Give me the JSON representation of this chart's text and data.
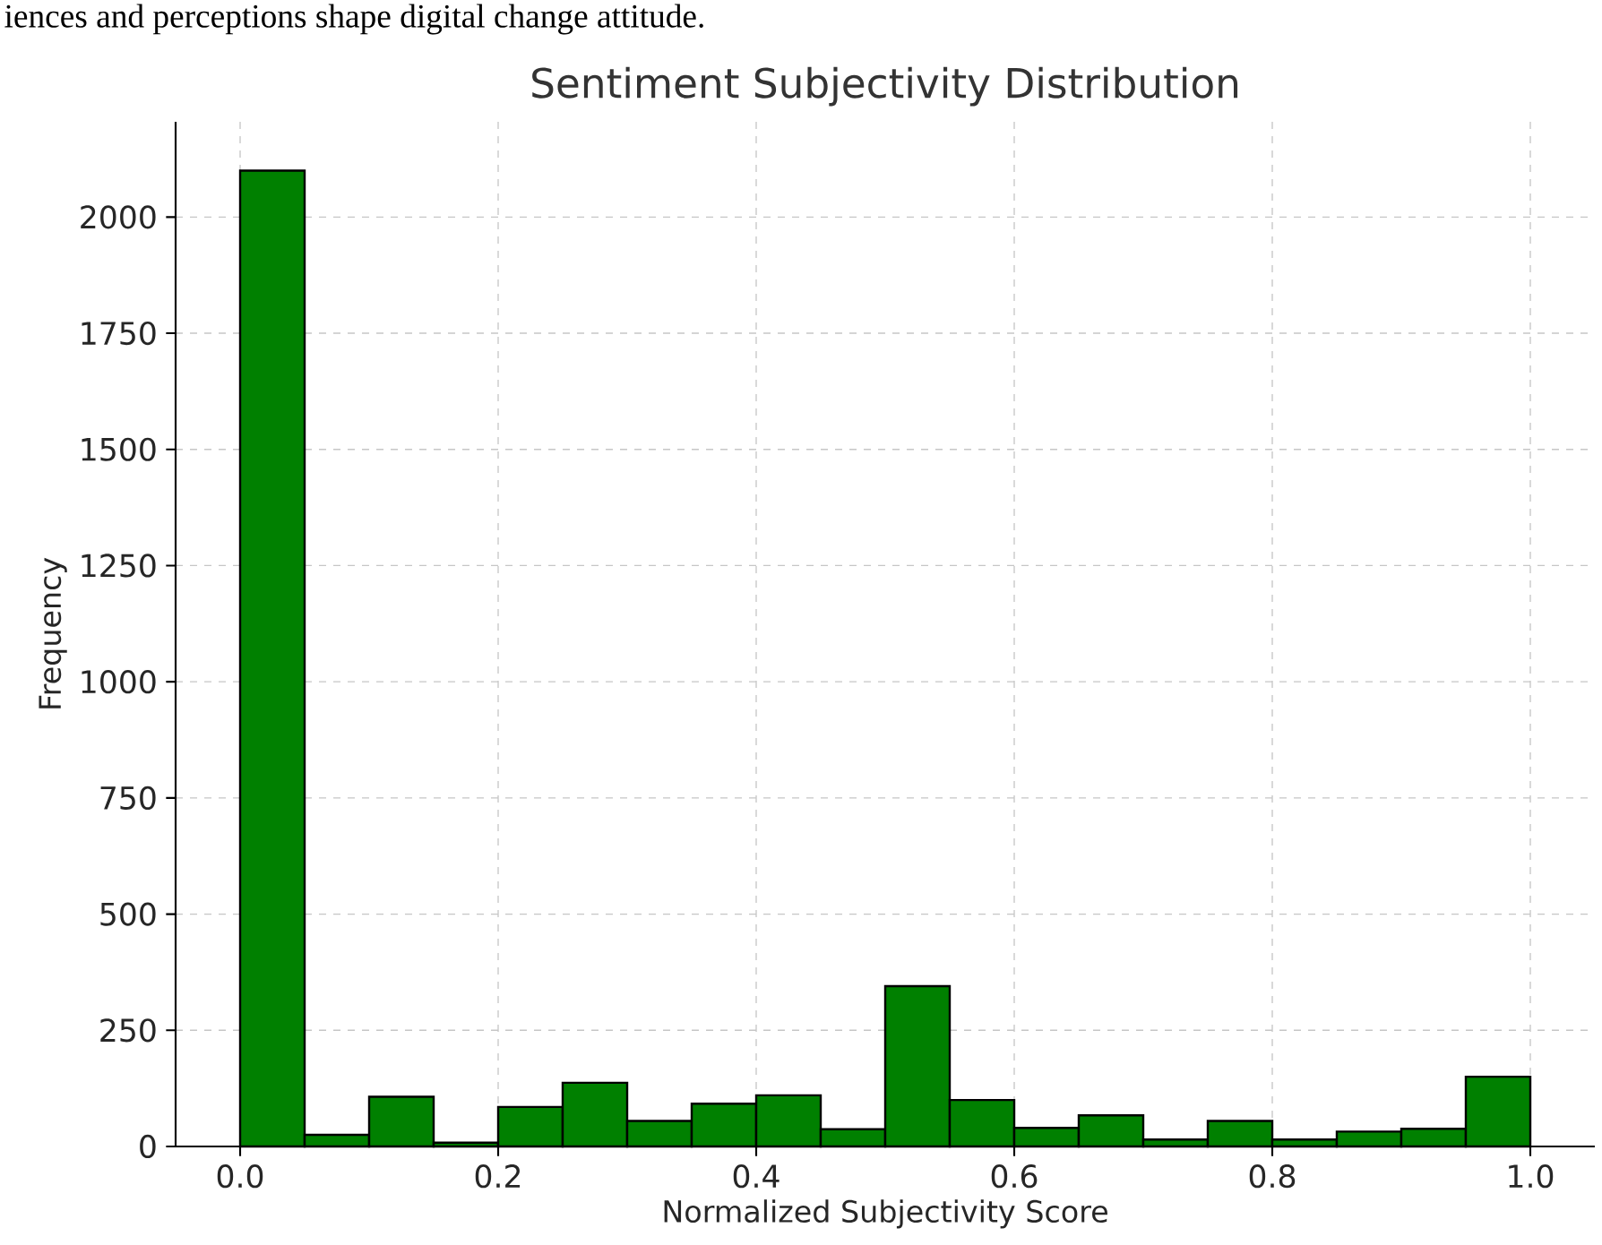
{
  "chart_data": {
    "type": "histogram",
    "title": "Sentiment Subjectivity Distribution",
    "xlabel": "Normalized Subjectivity Score",
    "ylabel": "Frequency",
    "annotations": [
      "iences and perceptions shape digital change attitude."
    ],
    "bins": [
      0,
      0.05,
      0.1,
      0.15,
      0.2,
      0.25,
      0.3,
      0.35,
      0.4,
      0.45,
      0.5,
      0.55,
      0.6,
      0.65,
      0.7,
      0.75,
      0.8,
      0.85,
      0.9,
      0.95,
      1.0
    ],
    "values": [
      2100,
      25,
      107,
      8,
      85,
      137,
      55,
      92,
      110,
      37,
      345,
      100,
      40,
      67,
      15,
      55,
      15,
      32,
      38,
      150
    ],
    "color": "#008000",
    "xlim": [
      -0.05,
      1.05
    ],
    "ylim": [
      0,
      2205
    ],
    "xticks": [
      {
        "value": 0,
        "label": "0.0"
      },
      0.2,
      0.4,
      0.6,
      0.8,
      {
        "value": 1,
        "label": "1.0"
      }
    ],
    "yticks": [
      0,
      250,
      500,
      750,
      1000,
      1250,
      1500,
      1750,
      2000
    ],
    "grid": true
  }
}
